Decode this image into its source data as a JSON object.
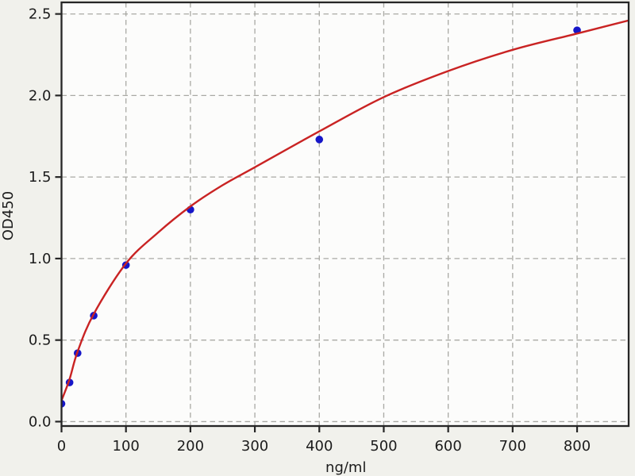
{
  "chart_data": {
    "type": "scatter",
    "title": "",
    "xlabel": "ng/ml",
    "ylabel": "OD450",
    "xlim": [
      0,
      880
    ],
    "ylim": [
      -0.027,
      2.571
    ],
    "grid": "dashed-both-axes",
    "legend": "none",
    "x_ticks": {
      "values": [
        0,
        100,
        200,
        300,
        400,
        500,
        600,
        700,
        800
      ],
      "labels": [
        "0",
        "100",
        "200",
        "300",
        "400",
        "500",
        "600",
        "700",
        "800"
      ]
    },
    "y_ticks": {
      "values": [
        0,
        0.5,
        1.0,
        1.5,
        2.0,
        2.5
      ],
      "labels": [
        "0.0",
        "0.5",
        "1.0",
        "1.5",
        "2.0",
        "2.5"
      ]
    },
    "series": [
      {
        "name": "standard-points",
        "type": "scatter",
        "color": "#1616c8",
        "x": [
          0,
          12.5,
          25,
          50,
          100,
          200,
          400,
          800
        ],
        "y": [
          0.11,
          0.24,
          0.42,
          0.65,
          0.96,
          1.3,
          1.73,
          2.4
        ]
      },
      {
        "name": "fit-curve",
        "type": "line",
        "color": "#c92323",
        "x": [
          0,
          12.5,
          25,
          50,
          100,
          150,
          200,
          250,
          300,
          400,
          500,
          600,
          700,
          800,
          880
        ],
        "y": [
          0.13,
          0.26,
          0.43,
          0.66,
          0.97,
          1.16,
          1.32,
          1.45,
          1.56,
          1.78,
          1.99,
          2.15,
          2.28,
          2.38,
          2.46
        ]
      }
    ],
    "colors": {
      "figure_background": "#f1f1ec",
      "plot_background": "#fcfcfb",
      "grid": "#a9a9a4",
      "spine": "#262626",
      "text": "#1c1c1c"
    }
  }
}
